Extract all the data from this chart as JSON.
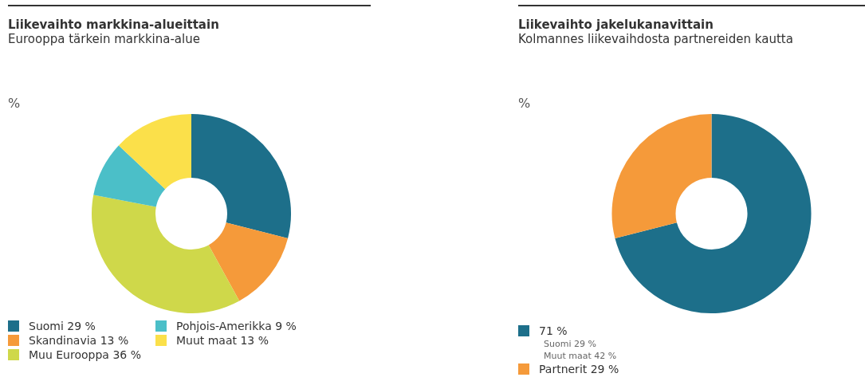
{
  "chart_data": [
    {
      "type": "donut",
      "title": "Liikevaihto markkina-alueittain",
      "subtitle": "Eurooppa tärkein markkina-alue",
      "annotations": [
        "%"
      ],
      "categories": [
        "Suomi",
        "Skandinavia",
        "Muu Eurooppa",
        "Pohjois-Amerikka",
        "Muut maat"
      ],
      "values": [
        29,
        13,
        36,
        9,
        13
      ],
      "value_labels": [
        "29 %",
        "13 %",
        "36 %",
        "9 %",
        "13 %"
      ],
      "colors": [
        "#1d6f8a",
        "#f59a3a",
        "#cfd84a",
        "#4bbfc8",
        "#fbe04a"
      ],
      "legend": "bottom"
    },
    {
      "type": "donut",
      "title": "Liikevaihto jakelukanavittain",
      "subtitle": "Kolmannes liikevaihdosta partnereiden kautta",
      "annotations": [
        "%",
        "Suomi 29 %",
        "Muut maat 42 %"
      ],
      "categories": [
        null,
        "Partnerit"
      ],
      "values": [
        71,
        29
      ],
      "value_labels": [
        "71 %",
        "29 %"
      ],
      "colors": [
        "#1d6f8a",
        "#f59a3a"
      ],
      "legend": "bottom"
    }
  ]
}
